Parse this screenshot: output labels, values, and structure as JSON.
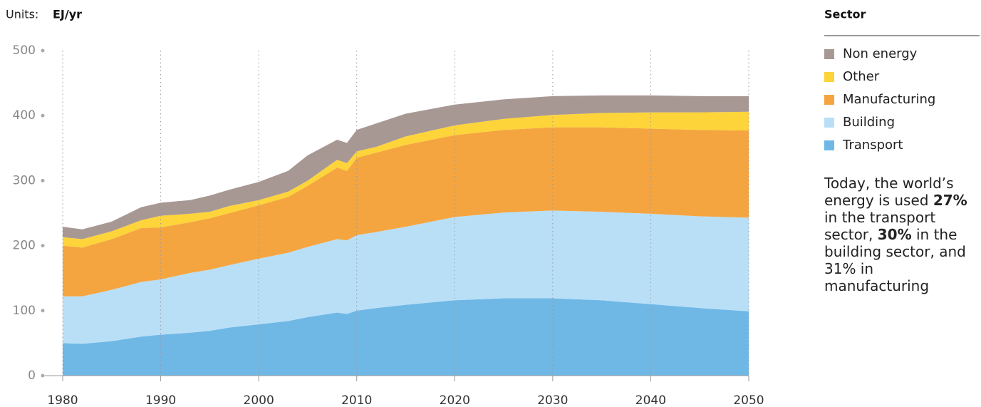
{
  "chart_data": {
    "type": "stacked_area",
    "units_label": "Units:",
    "units": "EJ/yr",
    "legend_title": "Sector",
    "x": [
      1980,
      1982,
      1985,
      1988,
      1990,
      1993,
      1995,
      1997,
      2000,
      2003,
      2005,
      2008,
      2009,
      2010,
      2012,
      2015,
      2020,
      2025,
      2030,
      2035,
      2040,
      2045,
      2050
    ],
    "series": [
      {
        "name": "Transport",
        "color": "#6fb8e6",
        "values": [
          50,
          49,
          53,
          60,
          63,
          66,
          69,
          74,
          79,
          84,
          90,
          97,
          95,
          100,
          104,
          109,
          116,
          119,
          119,
          116,
          110,
          104,
          99
        ]
      },
      {
        "name": "Building",
        "color": "#b9dff7",
        "values": [
          72,
          73,
          79,
          84,
          85,
          92,
          94,
          96,
          101,
          105,
          108,
          113,
          113,
          116,
          117,
          120,
          128,
          132,
          135,
          136,
          139,
          141,
          144
        ]
      },
      {
        "name": "Manufacturing",
        "color": "#f5a540",
        "values": [
          78,
          75,
          78,
          83,
          80,
          78,
          79,
          80,
          82,
          86,
          94,
          110,
          107,
          119,
          122,
          126,
          126,
          127,
          128,
          130,
          131,
          133,
          134
        ]
      },
      {
        "name": "Other",
        "color": "#fdd43a",
        "values": [
          13,
          13,
          12,
          12,
          18,
          13,
          10,
          11,
          8,
          8,
          8,
          12,
          12,
          10,
          9,
          13,
          15,
          17,
          19,
          22,
          25,
          27,
          29
        ]
      },
      {
        "name": "Non energy",
        "color": "#a89893",
        "values": [
          16,
          15,
          15,
          20,
          20,
          21,
          25,
          25,
          28,
          32,
          39,
          31,
          31,
          33,
          36,
          35,
          32,
          30,
          29,
          27,
          26,
          25,
          24
        ]
      }
    ],
    "xlim": [
      1980,
      2050
    ],
    "xticks": [
      1980,
      1990,
      2000,
      2010,
      2020,
      2030,
      2040,
      2050
    ],
    "ylim": [
      0,
      500
    ],
    "yticks": [
      0,
      100,
      200,
      300,
      400,
      500
    ],
    "grid": true,
    "annotation": [
      {
        "text": "Today, the world’s energy is used ",
        "bold": false
      },
      {
        "text": "27%",
        "bold": true
      },
      {
        "text": " in the transport sector, ",
        "bold": false
      },
      {
        "text": "30%",
        "bold": true
      },
      {
        "text": " in the building sector, and 31% in manufacturing",
        "bold": false
      }
    ]
  }
}
